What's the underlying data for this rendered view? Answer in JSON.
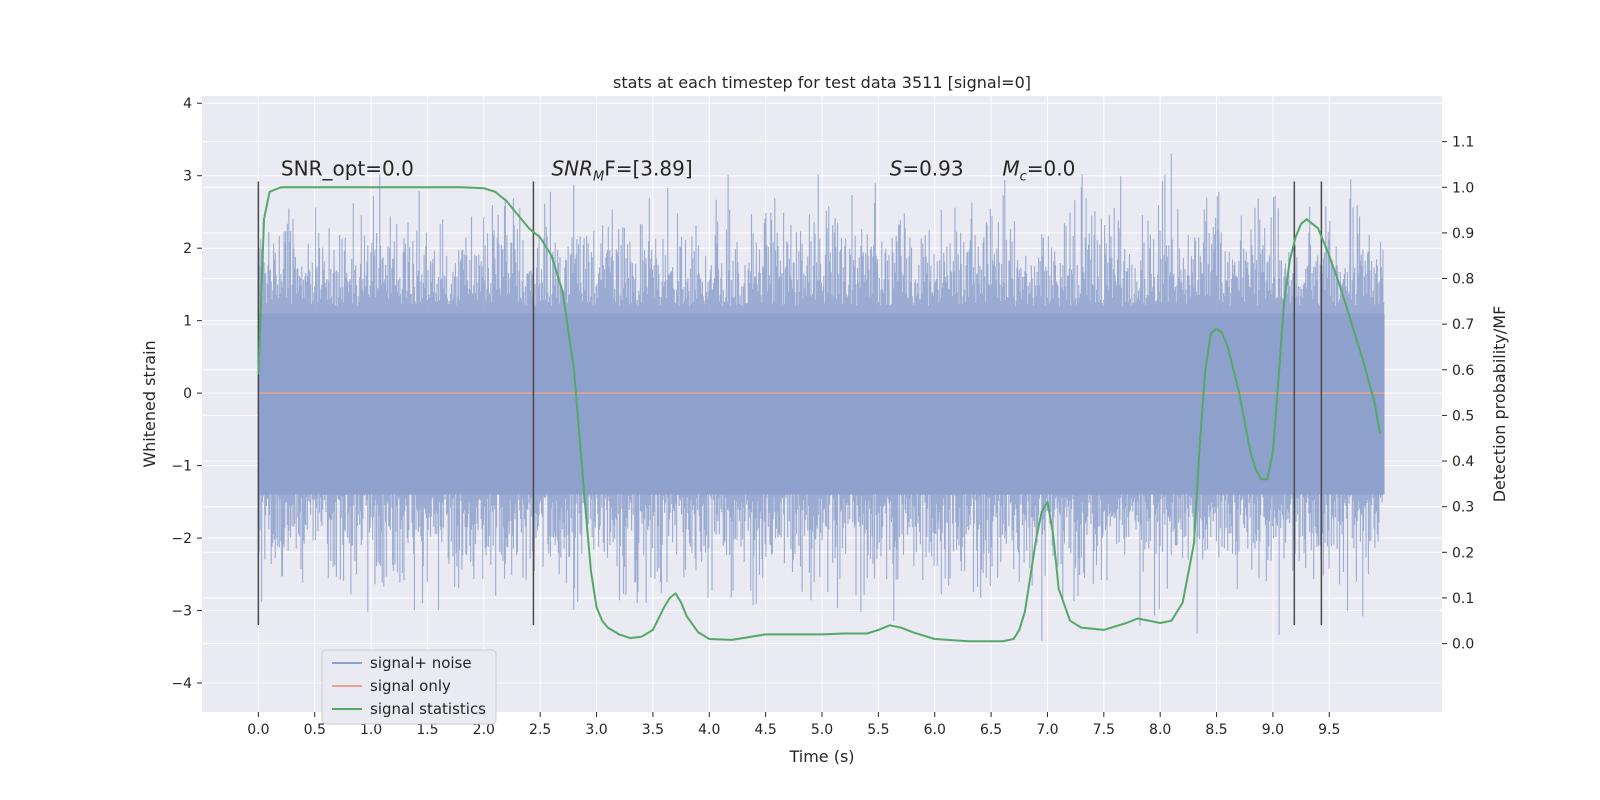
{
  "chart_data": {
    "type": "line",
    "title": "stats at each timestep for test data 3511 [signal=0]",
    "xlabel": "Time (s)",
    "ylabel": "Whitened strain",
    "y2label": "Detection probability/MF",
    "xlim": [
      -0.5,
      10.5
    ],
    "ylim": [
      -4.4,
      4.1
    ],
    "y2lim": [
      -0.15,
      1.2
    ],
    "x_ticks": [
      "0.0",
      "0.5",
      "1.0",
      "1.5",
      "2.0",
      "2.5",
      "3.0",
      "3.5",
      "4.0",
      "4.5",
      "5.0",
      "5.5",
      "6.0",
      "6.5",
      "7.0",
      "7.5",
      "8.0",
      "8.5",
      "9.0",
      "9.5"
    ],
    "y_ticks": [
      "−4",
      "−3",
      "−2",
      "−1",
      "0",
      "1",
      "2",
      "3",
      "4"
    ],
    "y2_ticks": [
      "0.0",
      "0.1",
      "0.2",
      "0.3",
      "0.4",
      "0.5",
      "0.6",
      "0.7",
      "0.8",
      "0.9",
      "1.0",
      "1.1"
    ],
    "grid": true,
    "legend_position": "lower-left",
    "annotations": [
      {
        "id": "snr-opt",
        "prefix": "SNR_opt=0.0",
        "sym": "",
        "sub": "",
        "tail": "",
        "x": 0.2,
        "y": 3.0
      },
      {
        "id": "snr-mf",
        "prefix": "",
        "sym": "SNR",
        "sub": "M",
        "tail": "F=[3.89]",
        "x": 2.6,
        "y": 3.0
      },
      {
        "id": "stat-s",
        "prefix": "",
        "sym": "S",
        "sub": "",
        "tail": "=0.93",
        "x": 5.6,
        "y": 3.0
      },
      {
        "id": "mc",
        "prefix": "",
        "sym": "M",
        "sub": "c",
        "tail": "=0.0",
        "x": 6.6,
        "y": 3.0
      }
    ],
    "vertical_markers": [
      0.0,
      2.44,
      9.19,
      9.43
    ],
    "marker_ylim": [
      -3.2,
      2.92
    ],
    "series": [
      {
        "name": "signal+ noise",
        "color": "#8da0cb",
        "x_range": [
          0.0,
          9.99
        ],
        "abs_max_band": [
          1.1,
          1.75
        ],
        "lower_band": [
          -1.4,
          -1.6
        ],
        "spike_max": 3.7,
        "spike_min": -3.8
      },
      {
        "name": "signal only",
        "color": "#e5a38f",
        "x": [
          0.0,
          9.99
        ],
        "y": [
          0.0,
          0.0
        ]
      },
      {
        "name": "signal statistics",
        "color": "#55a868",
        "axis": "right",
        "x": [
          0.0,
          0.05,
          0.1,
          0.15,
          0.2,
          0.3,
          0.5,
          0.8,
          1.0,
          1.2,
          1.5,
          1.8,
          2.0,
          2.1,
          2.2,
          2.3,
          2.4,
          2.5,
          2.6,
          2.7,
          2.8,
          2.85,
          2.9,
          2.95,
          3.0,
          3.05,
          3.1,
          3.2,
          3.3,
          3.4,
          3.5,
          3.6,
          3.65,
          3.7,
          3.75,
          3.8,
          3.9,
          4.0,
          4.2,
          4.5,
          4.8,
          5.0,
          5.2,
          5.4,
          5.5,
          5.6,
          5.7,
          5.8,
          6.0,
          6.3,
          6.6,
          6.7,
          6.75,
          6.8,
          6.9,
          6.95,
          7.0,
          7.05,
          7.1,
          7.2,
          7.3,
          7.5,
          7.7,
          7.8,
          7.9,
          8.0,
          8.1,
          8.2,
          8.3,
          8.35,
          8.4,
          8.45,
          8.5,
          8.55,
          8.6,
          8.7,
          8.8,
          8.85,
          8.9,
          8.95,
          9.0,
          9.05,
          9.1,
          9.15,
          9.2,
          9.25,
          9.3,
          9.4,
          9.5,
          9.6,
          9.7,
          9.8,
          9.9,
          9.95
        ],
        "y": [
          0.59,
          0.93,
          0.99,
          0.995,
          1.0,
          1.0,
          1.0,
          1.0,
          1.0,
          1.0,
          1.0,
          1.0,
          0.998,
          0.99,
          0.97,
          0.94,
          0.91,
          0.89,
          0.85,
          0.77,
          0.6,
          0.45,
          0.3,
          0.16,
          0.08,
          0.05,
          0.035,
          0.02,
          0.012,
          0.015,
          0.03,
          0.08,
          0.1,
          0.11,
          0.09,
          0.06,
          0.025,
          0.01,
          0.008,
          0.02,
          0.02,
          0.02,
          0.022,
          0.022,
          0.03,
          0.04,
          0.035,
          0.025,
          0.01,
          0.005,
          0.005,
          0.01,
          0.03,
          0.07,
          0.23,
          0.29,
          0.31,
          0.24,
          0.12,
          0.05,
          0.035,
          0.03,
          0.045,
          0.055,
          0.05,
          0.045,
          0.05,
          0.09,
          0.22,
          0.43,
          0.6,
          0.68,
          0.69,
          0.68,
          0.65,
          0.55,
          0.42,
          0.38,
          0.36,
          0.36,
          0.42,
          0.58,
          0.75,
          0.84,
          0.89,
          0.92,
          0.93,
          0.91,
          0.85,
          0.78,
          0.7,
          0.62,
          0.53,
          0.46
        ]
      }
    ]
  }
}
